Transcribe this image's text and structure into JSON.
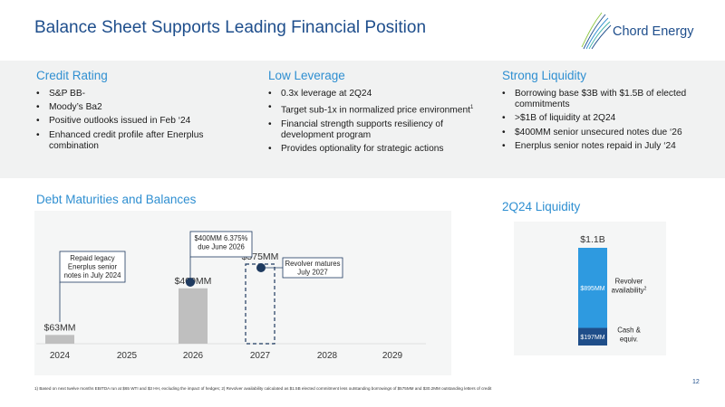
{
  "header": {
    "title": "Balance Sheet Supports Leading Financial Position"
  },
  "logo": {
    "text": "Chord Energy"
  },
  "columns": [
    {
      "title": "Credit Rating",
      "bullets": [
        "S&P BB-",
        "Moody’s Ba2",
        "Positive outlooks issued in Feb ‘24",
        "Enhanced credit profile after Enerplus combination"
      ]
    },
    {
      "title": "Low Leverage",
      "bullets": [
        "0.3x leverage at 2Q24",
        "Target sub-1x in normalized price environment",
        "Financial strength supports resiliency of development program",
        "Provides optionality for strategic actions"
      ],
      "superscript": "1"
    },
    {
      "title": "Strong Liquidity",
      "bullets": [
        "Borrowing base $3B with $1.5B of elected commitments",
        ">$1B of liquidity at 2Q24",
        "$400MM senior unsecured notes due ‘26",
        "Enerplus senior notes repaid in July ‘24"
      ]
    }
  ],
  "debt_section": {
    "title": "Debt Maturities and Balances"
  },
  "liquidity_section": {
    "title": "2Q24 Liquidity"
  },
  "colors": {
    "accent": "#2f8fd1",
    "navy": "#1e4e8c",
    "bar_gray": "#bfbfbf",
    "revolver_blue": "#2e9ae0",
    "cash_navy": "#1f4e89"
  },
  "chart_data": [
    {
      "type": "bar",
      "title": "Debt Maturities and Balances",
      "categories": [
        "2024",
        "2025",
        "2026",
        "2027",
        "2028",
        "2029"
      ],
      "values": [
        63,
        0,
        400,
        575,
        0,
        0
      ],
      "value_labels": [
        "$63MM",
        "",
        "$400MM",
        "$575MM",
        "",
        ""
      ],
      "styles": [
        "solid",
        "",
        "solid",
        "dashed",
        "",
        ""
      ],
      "annotations": [
        {
          "category": "2024",
          "lines": [
            "Repaid legacy",
            "Enerplus senior",
            "notes in July 2024"
          ]
        },
        {
          "category": "2026",
          "lines": [
            "$400MM 6.375%",
            "due June 2026"
          ]
        },
        {
          "category": "2027",
          "lines": [
            "Revolver matures",
            "July 2027"
          ]
        }
      ],
      "ylim": [
        0,
        575
      ]
    },
    {
      "type": "bar",
      "title": "2Q24 Liquidity",
      "stacked": true,
      "total_label": "$1.1B",
      "series": [
        {
          "name": "Cash & equiv.",
          "label_lines": [
            "Cash &",
            "equiv."
          ],
          "value": 197,
          "value_label": "$197MM"
        },
        {
          "name": "Revolver availability",
          "label_lines": [
            "Revolver",
            "availability"
          ],
          "superscript": "2",
          "value": 895,
          "value_label": "$895MM"
        }
      ]
    }
  ],
  "footnote": "1) Based on next twelve months EBITDA run at $65 WTI and $3 HH, excluding the impact of hedges; 2) Revolver availability calculated as $1.5B elected commitment less outstanding borrowings of $575MM and $30.2MM outstanding letters of credit",
  "page_number": "12"
}
